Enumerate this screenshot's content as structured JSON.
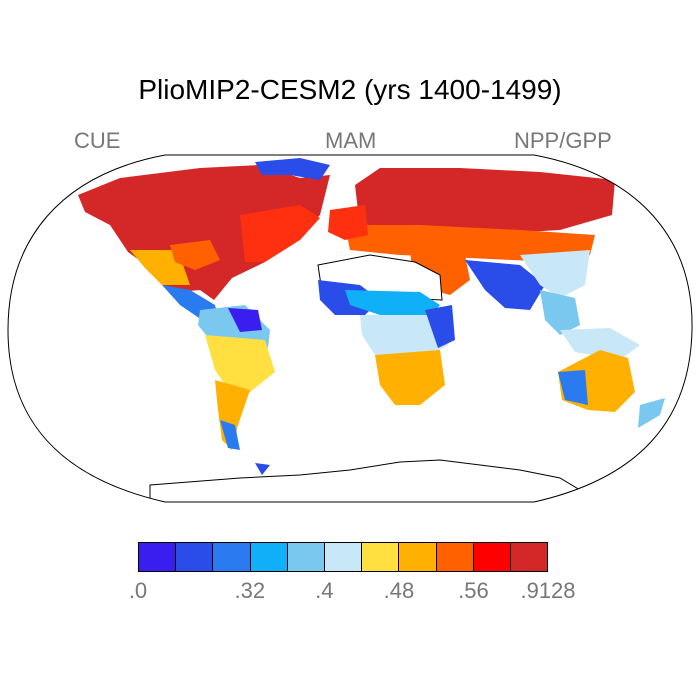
{
  "title": "PlioMIP2-CESM2 (yrs 1400-1499)",
  "label_left": "CUE",
  "label_center": "MAM",
  "label_right": "NPP/GPP",
  "colorbar": {
    "colors": [
      "#3a1ef0",
      "#2a4ce8",
      "#2a7af0",
      "#10b0f8",
      "#7ac8f0",
      "#c8e8f8",
      "#ffe040",
      "#ffb000",
      "#ff6000",
      "#ff0000",
      "#d42828"
    ],
    "tick_labels": [
      ".0",
      ".32",
      ".4",
      ".48",
      ".56",
      ".9128"
    ]
  }
}
